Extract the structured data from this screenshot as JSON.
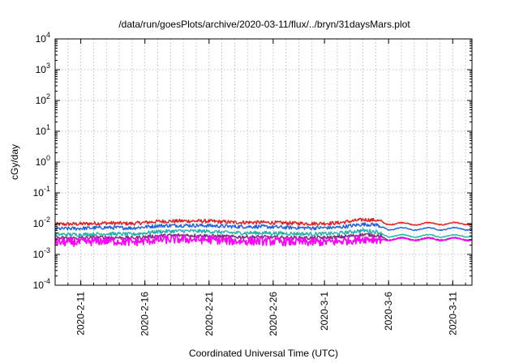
{
  "chart_data": {
    "type": "line",
    "title": "/data/run/goesPlots/archive/2020-03-11/flux/../bryn/31daysMars.plot",
    "xlabel": "Coordinated Universal Time (UTC)",
    "ylabel": "cGy/day",
    "y_scale": "log",
    "ylim": [
      0.0001,
      10000
    ],
    "y_ticks": [
      {
        "value": 0.0001,
        "base": "10",
        "exp": "-4"
      },
      {
        "value": 0.001,
        "base": "10",
        "exp": "-3"
      },
      {
        "value": 0.01,
        "base": "10",
        "exp": "-2"
      },
      {
        "value": 0.1,
        "base": "10",
        "exp": "-1"
      },
      {
        "value": 1,
        "base": "10",
        "exp": "0"
      },
      {
        "value": 10,
        "base": "10",
        "exp": "1"
      },
      {
        "value": 100,
        "base": "10",
        "exp": "2"
      },
      {
        "value": 1000,
        "base": "10",
        "exp": "3"
      },
      {
        "value": 10000,
        "base": "10",
        "exp": "4"
      }
    ],
    "xlim": [
      "2020-02-09",
      "2020-03-12 12:00"
    ],
    "x_ticks": [
      "2020-2-11",
      "2020-2-16",
      "2020-2-21",
      "2020-2-26",
      "2020-3-1",
      "2020-3-6",
      "2020-3-11"
    ],
    "grid": true,
    "legend": "none",
    "x": [
      "2020-02-09",
      "2020-02-11",
      "2020-02-13",
      "2020-02-15",
      "2020-02-17",
      "2020-02-19",
      "2020-02-21",
      "2020-02-23",
      "2020-02-25",
      "2020-02-27",
      "2020-02-29",
      "2020-03-02",
      "2020-03-04",
      "2020-03-05",
      "2020-03-06",
      "2020-03-08",
      "2020-03-10",
      "2020-03-12"
    ],
    "series": [
      {
        "color": "#e41a1c",
        "values": [
          0.0095,
          0.0098,
          0.0105,
          0.01,
          0.0118,
          0.0122,
          0.012,
          0.011,
          0.011,
          0.0105,
          0.01,
          0.0105,
          0.0135,
          0.013,
          0.01,
          0.0098,
          0.01,
          0.01
        ]
      },
      {
        "color": "#1f5fe0",
        "values": [
          0.0068,
          0.007,
          0.0075,
          0.0072,
          0.0085,
          0.0088,
          0.0086,
          0.008,
          0.008,
          0.0075,
          0.0072,
          0.0075,
          0.0095,
          0.0092,
          0.0068,
          0.0067,
          0.0068,
          0.0068
        ]
      },
      {
        "color": "#20b2aa",
        "values": [
          0.0045,
          0.0044,
          0.0047,
          0.0045,
          0.0055,
          0.0058,
          0.0056,
          0.005,
          0.005,
          0.0048,
          0.0046,
          0.0048,
          0.006,
          0.0055,
          0.004,
          0.004,
          0.004,
          0.004
        ]
      },
      {
        "color": "#7a2a7a",
        "values": [
          0.0034,
          0.0034,
          0.0036,
          0.0034,
          0.004,
          0.0042,
          0.004,
          0.0037,
          0.0037,
          0.0035,
          0.0034,
          0.0036,
          0.0044,
          0.0042,
          0.0032,
          0.0032,
          0.0032,
          0.0032
        ]
      },
      {
        "color": "#ff00ff",
        "values": [
          0.0025,
          0.0025,
          0.0028,
          0.0025,
          0.003,
          0.0031,
          0.003,
          0.0027,
          0.0027,
          0.0026,
          0.0025,
          0.0026,
          0.0032,
          0.0031,
          0.0031,
          0.0031,
          0.0031,
          0.0031
        ]
      }
    ]
  }
}
